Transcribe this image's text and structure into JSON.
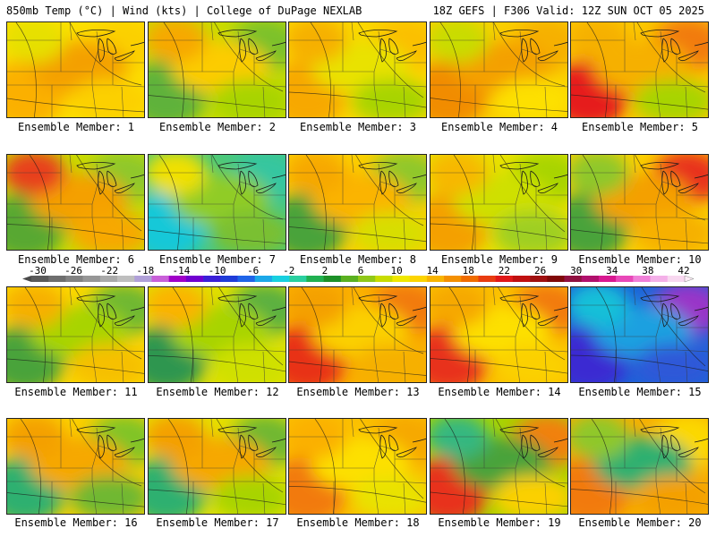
{
  "header": {
    "left": "850mb Temp (°C) | Wind (kts) | College of DuPage NEXLAB",
    "right": "18Z GEFS | F306 Valid: 12Z SUN OCT 05 2025"
  },
  "members": [
    {
      "label": "Ensemble Member: 1",
      "base": "#fde000",
      "blobs": [
        {
          "c": "#fbb000"
        },
        {
          "c": "#fbd000"
        },
        {
          "c": "#f4a000"
        },
        {
          "c": "#e6e000"
        },
        {
          "c": "#fcd000"
        }
      ]
    },
    {
      "label": "Ensemble Member: 2",
      "base": "#c9dc00",
      "blobs": [
        {
          "c": "#5fb23a"
        },
        {
          "c": "#7cc12a"
        },
        {
          "c": "#fccc00"
        },
        {
          "c": "#f7a800"
        },
        {
          "c": "#a8d400"
        }
      ]
    },
    {
      "label": "Ensemble Member: 3",
      "base": "#fcd800",
      "blobs": [
        {
          "c": "#f7a800"
        },
        {
          "c": "#fbc000"
        },
        {
          "c": "#e9e200"
        },
        {
          "c": "#f6b000"
        },
        {
          "c": "#a8d400"
        }
      ]
    },
    {
      "label": "Ensemble Member: 4",
      "base": "#fbd000",
      "blobs": [
        {
          "c": "#f18c00"
        },
        {
          "c": "#f6b000"
        },
        {
          "c": "#f4a000"
        },
        {
          "c": "#c9dc00"
        },
        {
          "c": "#fde000"
        }
      ]
    },
    {
      "label": "Ensemble Member: 5",
      "base": "#fcc800",
      "blobs": [
        {
          "c": "#e61e1e"
        },
        {
          "c": "#f27a10"
        },
        {
          "c": "#f6b000"
        },
        {
          "c": "#f6b000"
        },
        {
          "c": "#a8d400"
        }
      ]
    },
    {
      "label": "Ensemble Member: 6",
      "base": "#c9dc00",
      "blobs": [
        {
          "c": "#59a832"
        },
        {
          "c": "#8fc82a"
        },
        {
          "c": "#f4a000"
        },
        {
          "c": "#e8401e"
        },
        {
          "c": "#f7a800"
        }
      ]
    },
    {
      "label": "Ensemble Member: 7",
      "base": "#49c87a",
      "blobs": [
        {
          "c": "#17c8d8"
        },
        {
          "c": "#34c6a0"
        },
        {
          "c": "#90cc28"
        },
        {
          "c": "#f0e000"
        },
        {
          "c": "#7ac030"
        }
      ]
    },
    {
      "label": "Ensemble Member: 8",
      "base": "#fcd000",
      "blobs": [
        {
          "c": "#4aa33a"
        },
        {
          "c": "#8fc82a"
        },
        {
          "c": "#fbb400"
        },
        {
          "c": "#f7a800"
        },
        {
          "c": "#d8de00"
        }
      ]
    },
    {
      "label": "Ensemble Member: 9",
      "base": "#e9e200",
      "blobs": [
        {
          "c": "#f4a000"
        },
        {
          "c": "#a8d400"
        },
        {
          "c": "#cfe000"
        },
        {
          "c": "#f7b800"
        },
        {
          "c": "#9fcf20"
        }
      ]
    },
    {
      "label": "Ensemble Member: 10",
      "base": "#fcd000",
      "blobs": [
        {
          "c": "#4aa33a"
        },
        {
          "c": "#e8301e"
        },
        {
          "c": "#f4a000"
        },
        {
          "c": "#8fc82a"
        },
        {
          "c": "#f6b000"
        }
      ]
    },
    {
      "label": "Ensemble Member: 11",
      "base": "#fcd800",
      "blobs": [
        {
          "c": "#4aa33a"
        },
        {
          "c": "#6fb830"
        },
        {
          "c": "#a8d400"
        },
        {
          "c": "#f7b000"
        },
        {
          "c": "#f6c000"
        }
      ]
    },
    {
      "label": "Ensemble Member: 12",
      "base": "#e0e000",
      "blobs": [
        {
          "c": "#2e9650"
        },
        {
          "c": "#5cb040"
        },
        {
          "c": "#a8d400"
        },
        {
          "c": "#fbb400"
        },
        {
          "c": "#cfe000"
        }
      ]
    },
    {
      "label": "Ensemble Member: 13",
      "base": "#fbb000",
      "blobs": [
        {
          "c": "#e83018"
        },
        {
          "c": "#f27a10"
        },
        {
          "c": "#fbd000"
        },
        {
          "c": "#f4a000"
        },
        {
          "c": "#f6b000"
        }
      ]
    },
    {
      "label": "Ensemble Member: 14",
      "base": "#fbc000",
      "blobs": [
        {
          "c": "#e8301e"
        },
        {
          "c": "#f27a10"
        },
        {
          "c": "#fde000"
        },
        {
          "c": "#f6a800"
        },
        {
          "c": "#fbd000"
        }
      ]
    },
    {
      "label": "Ensemble Member: 15",
      "base": "#1c64d8",
      "blobs": [
        {
          "c": "#3a2bd2"
        },
        {
          "c": "#9a34c8"
        },
        {
          "c": "#1aa0e0"
        },
        {
          "c": "#15c0d8"
        },
        {
          "c": "#2e58d8"
        }
      ]
    },
    {
      "label": "Ensemble Member: 16",
      "base": "#fcd000",
      "blobs": [
        {
          "c": "#2eb070"
        },
        {
          "c": "#80c428"
        },
        {
          "c": "#f6a800"
        },
        {
          "c": "#f4a000"
        },
        {
          "c": "#6fb830"
        }
      ]
    },
    {
      "label": "Ensemble Member: 17",
      "base": "#e6e000",
      "blobs": [
        {
          "c": "#2eb070"
        },
        {
          "c": "#6fb830"
        },
        {
          "c": "#f6a800"
        },
        {
          "c": "#f4a000"
        },
        {
          "c": "#a8d400"
        }
      ]
    },
    {
      "label": "Ensemble Member: 18",
      "base": "#fbc000",
      "blobs": [
        {
          "c": "#f27a10"
        },
        {
          "c": "#f6a800"
        },
        {
          "c": "#fde000"
        },
        {
          "c": "#fbb000"
        },
        {
          "c": "#e9e200"
        }
      ]
    },
    {
      "label": "Ensemble Member: 19",
      "base": "#a8d400",
      "blobs": [
        {
          "c": "#e8301e"
        },
        {
          "c": "#f28010"
        },
        {
          "c": "#4aa33a"
        },
        {
          "c": "#34b880"
        },
        {
          "c": "#fbd000"
        }
      ]
    },
    {
      "label": "Ensemble Member: 20",
      "base": "#f7b000",
      "blobs": [
        {
          "c": "#f27a10"
        },
        {
          "c": "#fcd800"
        },
        {
          "c": "#2eb070"
        },
        {
          "c": "#8fc82a"
        },
        {
          "c": "#f4a000"
        }
      ]
    }
  ],
  "colorbar": {
    "ticks": [
      "-30",
      "-26",
      "-22",
      "-18",
      "-14",
      "-10",
      "-6",
      "-2",
      "2",
      "6",
      "10",
      "14",
      "18",
      "22",
      "26",
      "30",
      "34",
      "38",
      "42"
    ],
    "colors": [
      "#5a5a5a",
      "#6e6e6e",
      "#828282",
      "#969696",
      "#aaaaaa",
      "#bebebe",
      "#b0a0d8",
      "#c860d8",
      "#a000c8",
      "#7000d0",
      "#3a1fd8",
      "#1f3cd8",
      "#1f64e8",
      "#1ca8e8",
      "#18d0e0",
      "#2ad0a0",
      "#20b050",
      "#1c9028",
      "#5ab020",
      "#90c818",
      "#c8dc00",
      "#f0e800",
      "#fcd400",
      "#f8b400",
      "#f49000",
      "#f06c00",
      "#e83c10",
      "#e01818",
      "#c01010",
      "#a01010",
      "#800808",
      "#901040",
      "#b0106c",
      "#d81890",
      "#e848b8",
      "#f080d8",
      "#f4b0e8",
      "#f8d8f0"
    ]
  }
}
